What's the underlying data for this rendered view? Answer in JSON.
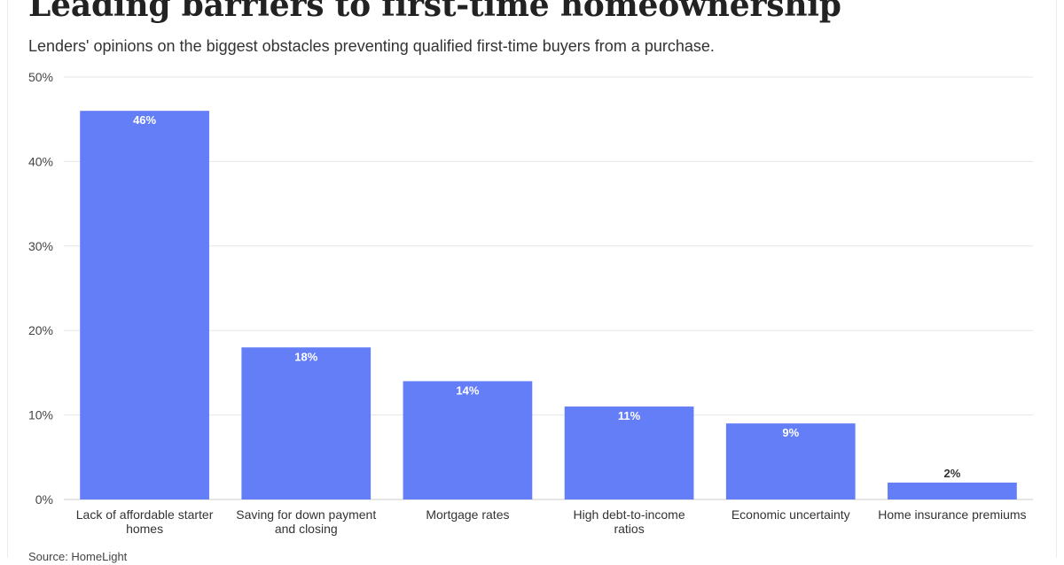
{
  "title": "Leading barriers to first-time homeownership",
  "subtitle": "Lenders' opinions on the biggest obstacles preventing qualified first-time buyers from a purchase.",
  "source": "Source: HomeLight",
  "colors": {
    "bar": "#637ef6",
    "gridline": "#e6e6e6",
    "axis": "#cccccc",
    "label_inside": "#ffffff",
    "label_outside": "#333333"
  },
  "chart_data": {
    "type": "bar",
    "title": "Leading barriers to first-time homeownership",
    "subtitle": "Lenders' opinions on the biggest obstacles preventing qualified first-time buyers from a purchase.",
    "categories": [
      [
        "Lack of affordable starter",
        "homes"
      ],
      [
        "Saving for down payment",
        "and closing"
      ],
      [
        "Mortgage rates"
      ],
      [
        "High debt-to-income",
        "ratios"
      ],
      [
        "Economic uncertainty"
      ],
      [
        "Home insurance premiums"
      ]
    ],
    "values": [
      46,
      18,
      14,
      11,
      9,
      2
    ],
    "data_labels": [
      "46%",
      "18%",
      "14%",
      "11%",
      "9%",
      "2%"
    ],
    "ylim": [
      0,
      50
    ],
    "yticks": [
      0,
      10,
      20,
      30,
      40,
      50
    ],
    "ytick_labels": [
      "0%",
      "10%",
      "20%",
      "30%",
      "40%",
      "50%"
    ],
    "grid": true,
    "legend": "none",
    "xlabel": "",
    "ylabel": ""
  }
}
